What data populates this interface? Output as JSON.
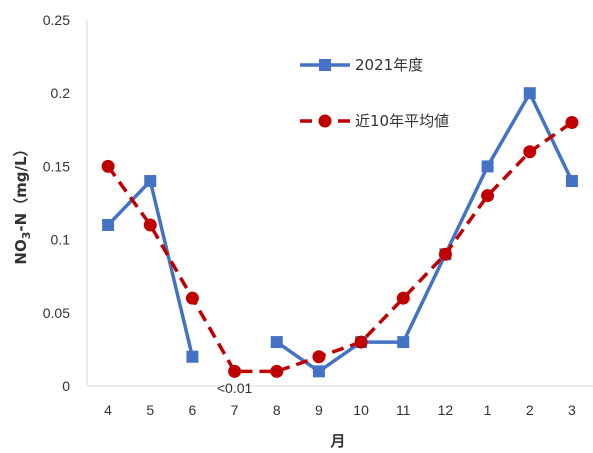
{
  "chart_data": {
    "type": "line",
    "categories": [
      "4",
      "5",
      "6",
      "7",
      "8",
      "9",
      "10",
      "11",
      "12",
      "1",
      "2",
      "3"
    ],
    "series": [
      {
        "name": "2021年度",
        "values": [
          0.11,
          0.14,
          0.02,
          null,
          0.03,
          0.01,
          0.03,
          0.03,
          0.09,
          0.15,
          0.2,
          0.14
        ],
        "color": "#4472C4",
        "line": "solid",
        "marker": "square"
      },
      {
        "name": "近10年平均値",
        "values": [
          0.15,
          0.11,
          0.06,
          0.01,
          0.01,
          0.02,
          0.03,
          0.06,
          0.09,
          0.13,
          0.16,
          0.18
        ],
        "color": "#C00000",
        "line": "dashed",
        "marker": "circle"
      }
    ],
    "xlabel": "月",
    "ylabel": {
      "main": "NO",
      "sub": "3",
      "rest": "-N（mg/L）"
    },
    "ylim": [
      0,
      0.25
    ],
    "yticks": [
      0,
      0.05,
      0.1,
      0.15,
      0.2,
      0.25
    ],
    "ytick_labels": [
      "0",
      "0.05",
      "0.1",
      "0.15",
      "0.2",
      "0.25"
    ],
    "grid": false,
    "legend_position": "top-right",
    "annotations": [
      {
        "text": "<0.01",
        "category": "7"
      }
    ]
  }
}
